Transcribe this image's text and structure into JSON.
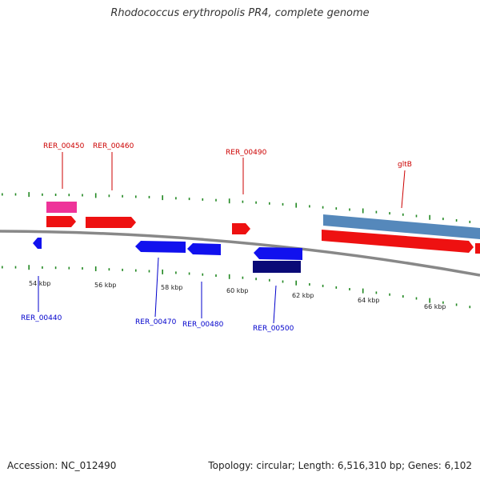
{
  "title": "Rhodococcus erythropolis PR4, complete genome",
  "footer": {
    "accession": "Accession: NC_012490",
    "info": "Topology: circular; Length: 6,516,310 bp; Genes: 6,102"
  },
  "colors": {
    "forward_gene": "#ee1111",
    "reverse_gene": "#1111ee",
    "highlight_forward": "#ee3399",
    "highlight_reverse": "#0a0a77",
    "operon": "#5588bb",
    "backbone": "#888888",
    "ticks": "#228822",
    "label_forward": "#cc0000",
    "label_reverse": "#0000cc"
  },
  "scale_ticks": [
    "54 kbp",
    "56 kbp",
    "58 kbp",
    "60 kbp",
    "62 kbp",
    "64 kbp",
    "66 kbp"
  ],
  "gene_labels_top": [
    "RER_00450",
    "RER_00460",
    "RER_00490",
    "gltB"
  ],
  "gene_labels_bottom": [
    "RER_00440",
    "RER_00470",
    "RER_00480",
    "RER_00500"
  ]
}
